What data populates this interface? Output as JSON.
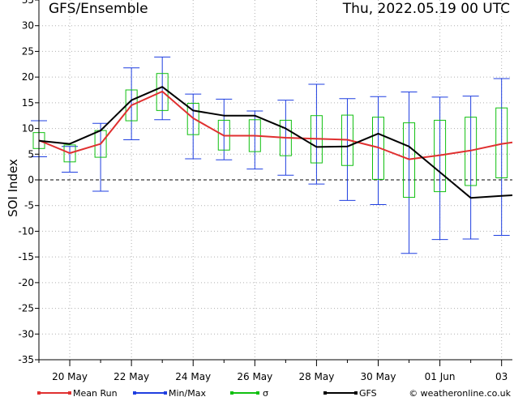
{
  "header": {
    "title": "GFS/Ensemble",
    "timestamp": "Thu, 2022.05.19   00 UTC"
  },
  "legend": {
    "mean_run": "Mean Run",
    "minmax": "Min/Max",
    "sigma": "σ",
    "gfs": "GFS"
  },
  "credit": "© weatheronline.co.uk",
  "colors": {
    "mean_run": "#e03030",
    "minmax": "#1f3fe0",
    "sigma": "#10c010",
    "gfs": "#000000"
  },
  "chart_data": {
    "type": "line",
    "ylabel": "SOI Index",
    "ylim": [
      -35,
      35
    ],
    "yticks": [
      35,
      30,
      25,
      20,
      15,
      10,
      5,
      0,
      -5,
      -10,
      -15,
      -20,
      -25,
      -30,
      -35
    ],
    "grid": true,
    "x_labels": [
      "20 May",
      "22 May",
      "24 May",
      "26 May",
      "28 May",
      "30 May",
      "01 Jun",
      "03"
    ],
    "x_label_positions": [
      1,
      3,
      5,
      7,
      9,
      11,
      13,
      15
    ],
    "x_range": [
      0,
      15.35
    ],
    "x": [
      0,
      1,
      2,
      3,
      4,
      5,
      6,
      7,
      8,
      9,
      10,
      11,
      12,
      13,
      14,
      15,
      15.35
    ],
    "series": [
      {
        "name": "Mean Run",
        "values": [
          7.7,
          5.2,
          7.0,
          14.5,
          17.2,
          12.0,
          8.6,
          8.6,
          8.2,
          8.0,
          7.8,
          6.3,
          4.0,
          4.8,
          5.7,
          7.0,
          7.3
        ]
      },
      {
        "name": "GFS",
        "values": [
          7.6,
          7.0,
          9.6,
          15.5,
          18.1,
          13.5,
          12.5,
          12.5,
          10.0,
          6.4,
          6.5,
          9.0,
          6.5,
          1.5,
          -3.5,
          -3.1,
          -3.0
        ]
      }
    ],
    "minmax": [
      {
        "x": 0,
        "min": 4.5,
        "max": 11.5
      },
      {
        "x": 1,
        "min": 1.5,
        "max": 6.5
      },
      {
        "x": 2,
        "min": -2.2,
        "max": 11.0
      },
      {
        "x": 3,
        "min": 7.8,
        "max": 21.8
      },
      {
        "x": 4,
        "min": 11.7,
        "max": 23.9
      },
      {
        "x": 5,
        "min": 4.1,
        "max": 16.7
      },
      {
        "x": 6,
        "min": 3.9,
        "max": 15.7
      },
      {
        "x": 7,
        "min": 2.1,
        "max": 13.4
      },
      {
        "x": 8,
        "min": 0.9,
        "max": 15.5
      },
      {
        "x": 9,
        "min": -0.8,
        "max": 18.6
      },
      {
        "x": 10,
        "min": -4.0,
        "max": 15.8
      },
      {
        "x": 11,
        "min": -4.8,
        "max": 16.2
      },
      {
        "x": 12,
        "min": -14.3,
        "max": 17.1
      },
      {
        "x": 13,
        "min": -11.6,
        "max": 16.1
      },
      {
        "x": 14,
        "min": -11.5,
        "max": 16.3
      },
      {
        "x": 15,
        "min": -10.8,
        "max": 19.7
      }
    ],
    "sigma": [
      {
        "x": 0,
        "low": 6.1,
        "high": 9.2
      },
      {
        "x": 1,
        "low": 3.5,
        "high": 6.8
      },
      {
        "x": 2,
        "low": 4.4,
        "high": 9.6
      },
      {
        "x": 3,
        "low": 11.5,
        "high": 17.5
      },
      {
        "x": 4,
        "low": 13.5,
        "high": 20.7
      },
      {
        "x": 5,
        "low": 8.8,
        "high": 14.9
      },
      {
        "x": 6,
        "low": 5.8,
        "high": 11.6
      },
      {
        "x": 7,
        "low": 5.5,
        "high": 11.7
      },
      {
        "x": 8,
        "low": 4.7,
        "high": 11.6
      },
      {
        "x": 9,
        "low": 3.3,
        "high": 12.5
      },
      {
        "x": 10,
        "low": 2.8,
        "high": 12.6
      },
      {
        "x": 11,
        "low": 0.1,
        "high": 12.2
      },
      {
        "x": 12,
        "low": -3.4,
        "high": 11.1
      },
      {
        "x": 13,
        "low": -2.3,
        "high": 11.6
      },
      {
        "x": 14,
        "low": -1.1,
        "high": 12.2
      },
      {
        "x": 15,
        "low": 0.4,
        "high": 14.0
      }
    ]
  }
}
